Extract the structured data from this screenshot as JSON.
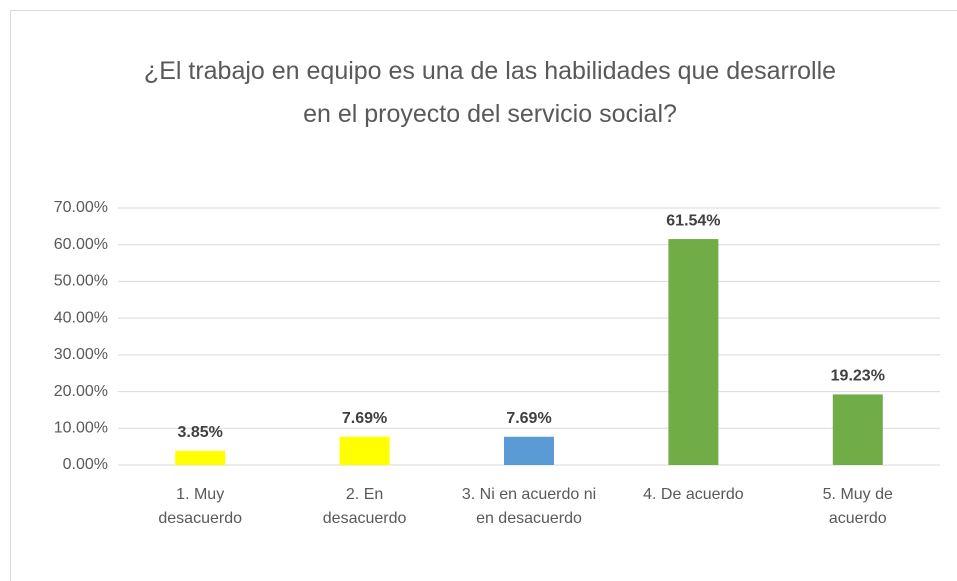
{
  "chart_data": {
    "type": "bar",
    "title": "¿El trabajo en equipo es una de las habilidades que desarrolle en el proyecto del servicio social?",
    "categories": [
      "1. Muy desacuerdo",
      "2. En desacuerdo",
      "3. Ni en acuerdo ni en desacuerdo",
      "4. De acuerdo",
      "5. Muy de acuerdo"
    ],
    "values": [
      3.85,
      7.69,
      7.69,
      61.54,
      19.23
    ],
    "value_labels": [
      "3.85%",
      "7.69%",
      "7.69%",
      "61.54%",
      "19.23%"
    ],
    "colors": [
      "#ffff00",
      "#ffff00",
      "#5b9bd5",
      "#70ad47",
      "#70ad47"
    ],
    "ylim": [
      0,
      70
    ],
    "yticks": [
      {
        "value": 0,
        "label": "0.00%"
      },
      {
        "value": 10,
        "label": "10.00%"
      },
      {
        "value": 20,
        "label": "20.00%"
      },
      {
        "value": 30,
        "label": "30.00%"
      },
      {
        "value": 40,
        "label": "40.00%"
      },
      {
        "value": 50,
        "label": "50.00%"
      },
      {
        "value": 60,
        "label": "60.00%"
      },
      {
        "value": 70,
        "label": "70.00%"
      }
    ],
    "grid": true
  }
}
